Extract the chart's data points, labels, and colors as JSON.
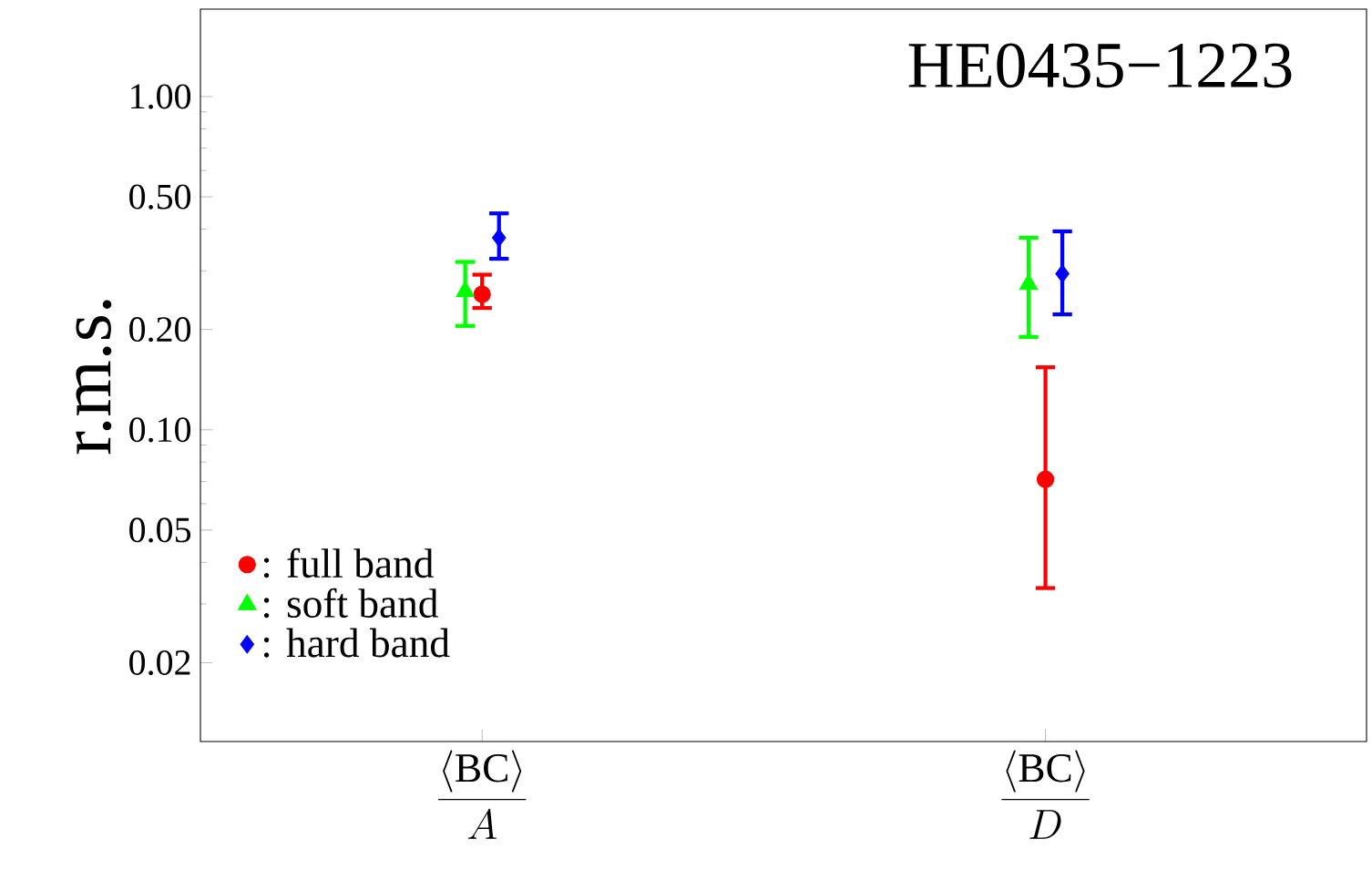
{
  "chart_data": {
    "type": "scatter",
    "ylabel": "r.m.s.",
    "log": "y",
    "categories": [
      "\\frac{\\langle \\mathrm{BC}\\rangle}{A}",
      "\\frac{\\langle \\mathrm{BC}\\rangle}{D}"
    ],
    "series": [
      {
        "name": ": full  band",
        "color": "#ff0000",
        "marker": "circle",
        "values": [
          0.255,
          0.071
        ],
        "errors": [
          [
            0.232,
            0.292
          ],
          [
            0.0335,
            0.154
          ]
        ]
      },
      {
        "name": ": soft  band",
        "color": "#00ff00",
        "marker": "triangle",
        "values": [
          0.26,
          0.273
        ],
        "errors": [
          [
            0.205,
            0.319
          ],
          [
            0.19,
            0.377
          ]
        ]
      },
      {
        "name": ": hard band",
        "color": "#0000ff",
        "marker": "diamond",
        "values": [
          0.377,
          0.294
        ],
        "errors": [
          [
            0.326,
            0.446
          ],
          [
            0.222,
            0.394
          ]
        ]
      }
    ],
    "ylim": [
      0.0116,
      1.83
    ],
    "yticks": [
      0.02,
      0.05,
      {
        "value": 0.1,
        "label": "0.10"
      },
      {
        "value": 0.2,
        "label": "0.20"
      },
      {
        "value": 0.5,
        "label": "0.50"
      },
      {
        "value": 1,
        "label": "1.00"
      }
    ],
    "annotations": [
      "HE0435−1223"
    ],
    "legend": "bottom left",
    "grid": false
  }
}
